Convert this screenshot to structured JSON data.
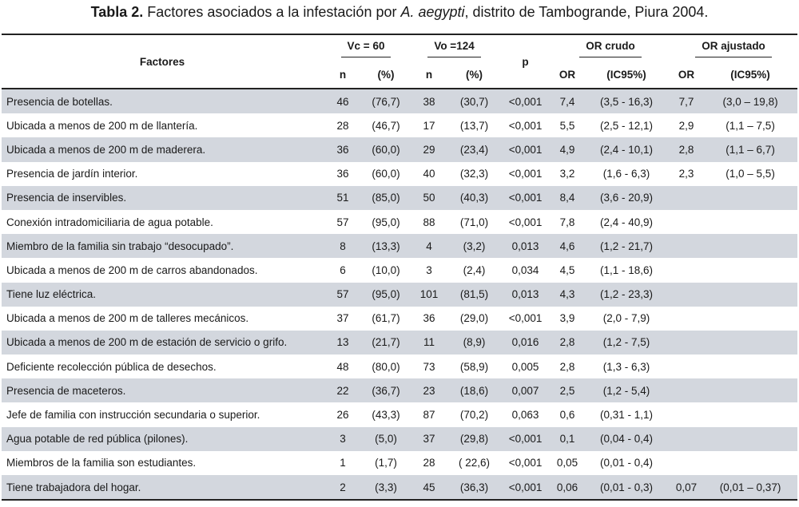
{
  "caption": {
    "label": "Tabla 2.",
    "text_before": "Factores asociados a la infestación por",
    "species": "A. aegypti",
    "text_after": ", distrito de Tambogrande, Piura 2004."
  },
  "header": {
    "factores": "Factores",
    "vc": "Vc = 60",
    "vo": "Vo =124",
    "p": "p",
    "or_crudo": "OR crudo",
    "or_ajustado": "OR ajustado",
    "n": "n",
    "pct": "(%)",
    "or": "OR",
    "ic95": "(IC95%)"
  },
  "rows": [
    {
      "factor": "Presencia de botellas.",
      "vc_n": "46",
      "vc_pct": "(76,7)",
      "vo_n": "38",
      "vo_pct": "(30,7)",
      "p": "<0,001",
      "or_c": "7,4",
      "ic_c": "(3,5 - 16,3)",
      "or_a": "7,7",
      "ic_a": "(3,0 – 19,8)"
    },
    {
      "factor": "Ubicada a menos de 200 m de llantería.",
      "vc_n": "28",
      "vc_pct": "(46,7)",
      "vo_n": "17",
      "vo_pct": "(13,7)",
      "p": "<0,001",
      "or_c": "5,5",
      "ic_c": "(2,5 - 12,1)",
      "or_a": "2,9",
      "ic_a": "(1,1 – 7,5)"
    },
    {
      "factor": "Ubicada a menos de 200 m de maderera.",
      "vc_n": "36",
      "vc_pct": "(60,0)",
      "vo_n": "29",
      "vo_pct": "(23,4)",
      "p": "<0,001",
      "or_c": "4,9",
      "ic_c": "(2,4 - 10,1)",
      "or_a": "2,8",
      "ic_a": "(1,1 – 6,7)"
    },
    {
      "factor": "Presencia de jardín interior.",
      "vc_n": "36",
      "vc_pct": "(60,0)",
      "vo_n": "40",
      "vo_pct": "(32,3)",
      "p": "<0,001",
      "or_c": "3,2",
      "ic_c": "(1,6 - 6,3)",
      "or_a": "2,3",
      "ic_a": "(1,0 – 5,5)"
    },
    {
      "factor": "Presencia de inservibles.",
      "vc_n": "51",
      "vc_pct": "(85,0)",
      "vo_n": "50",
      "vo_pct": "(40,3)",
      "p": "<0,001",
      "or_c": "8,4",
      "ic_c": "(3,6 - 20,9)",
      "or_a": "",
      "ic_a": ""
    },
    {
      "factor": "Conexión intradomiciliaria de agua potable.",
      "vc_n": "57",
      "vc_pct": "(95,0)",
      "vo_n": "88",
      "vo_pct": "(71,0)",
      "p": "<0,001",
      "or_c": "7,8",
      "ic_c": "(2,4 - 40,9)",
      "or_a": "",
      "ic_a": ""
    },
    {
      "factor": "Miembro de la familia sin trabajo “desocupado”.",
      "vc_n": "8",
      "vc_pct": "(13,3)",
      "vo_n": "4",
      "vo_pct": "(3,2)",
      "p": "0,013",
      "or_c": "4,6",
      "ic_c": "(1,2 - 21,7)",
      "or_a": "",
      "ic_a": ""
    },
    {
      "factor": "Ubicada a menos de 200 m de carros abandonados.",
      "vc_n": "6",
      "vc_pct": "(10,0)",
      "vo_n": "3",
      "vo_pct": "(2,4)",
      "p": "0,034",
      "or_c": "4,5",
      "ic_c": "(1,1 - 18,6)",
      "or_a": "",
      "ic_a": ""
    },
    {
      "factor": "Tiene luz eléctrica.",
      "vc_n": "57",
      "vc_pct": "(95,0)",
      "vo_n": "101",
      "vo_pct": "(81,5)",
      "p": "0,013",
      "or_c": "4,3",
      "ic_c": "(1,2 - 23,3)",
      "or_a": "",
      "ic_a": ""
    },
    {
      "factor": "Ubicada a menos de 200 m de talleres mecánicos.",
      "vc_n": "37",
      "vc_pct": "(61,7)",
      "vo_n": "36",
      "vo_pct": "(29,0)",
      "p": "<0,001",
      "or_c": "3,9",
      "ic_c": "(2,0 - 7,9)",
      "or_a": "",
      "ic_a": ""
    },
    {
      "factor": "Ubicada a menos de 200 m de estación de servicio o grifo.",
      "vc_n": "13",
      "vc_pct": "(21,7)",
      "vo_n": "11",
      "vo_pct": "(8,9)",
      "p": "0,016",
      "or_c": "2,8",
      "ic_c": "(1,2 - 7,5)",
      "or_a": "",
      "ic_a": ""
    },
    {
      "factor": "Deficiente recolección pública de desechos.",
      "vc_n": "48",
      "vc_pct": "(80,0)",
      "vo_n": "73",
      "vo_pct": "(58,9)",
      "p": "0,005",
      "or_c": "2,8",
      "ic_c": "(1,3 - 6,3)",
      "or_a": "",
      "ic_a": ""
    },
    {
      "factor": "Presencia de maceteros.",
      "vc_n": "22",
      "vc_pct": "(36,7)",
      "vo_n": "23",
      "vo_pct": "(18,6)",
      "p": "0,007",
      "or_c": "2,5",
      "ic_c": "(1,2 - 5,4)",
      "or_a": "",
      "ic_a": ""
    },
    {
      "factor": "Jefe de familia con instrucción secundaria o superior.",
      "vc_n": "26",
      "vc_pct": "(43,3)",
      "vo_n": "87",
      "vo_pct": "(70,2)",
      "p": "0,063",
      "or_c": "0,6",
      "ic_c": "(0,31 - 1,1)",
      "or_a": "",
      "ic_a": ""
    },
    {
      "factor": "Agua potable de red pública (pilones).",
      "vc_n": "3",
      "vc_pct": "(5,0)",
      "vo_n": "37",
      "vo_pct": "(29,8)",
      "p": "<0,001",
      "or_c": "0,1",
      "ic_c": "(0,04 - 0,4)",
      "or_a": "",
      "ic_a": ""
    },
    {
      "factor": "Miembros de la familia son estudiantes.",
      "vc_n": "1",
      "vc_pct": "(1,7)",
      "vo_n": "28",
      "vo_pct": "( 22,6)",
      "p": "<0,001",
      "or_c": "0,05",
      "ic_c": "(0,01 - 0,4)",
      "or_a": "",
      "ic_a": ""
    },
    {
      "factor": "Tiene trabajadora del hogar.",
      "vc_n": "2",
      "vc_pct": "(3,3)",
      "vo_n": "45",
      "vo_pct": "(36,3)",
      "p": "<0,001",
      "or_c": "0,06",
      "ic_c": "(0,01 - 0,3)",
      "or_a": "0,07",
      "ic_a": "(0,01 – 0,37)"
    }
  ]
}
